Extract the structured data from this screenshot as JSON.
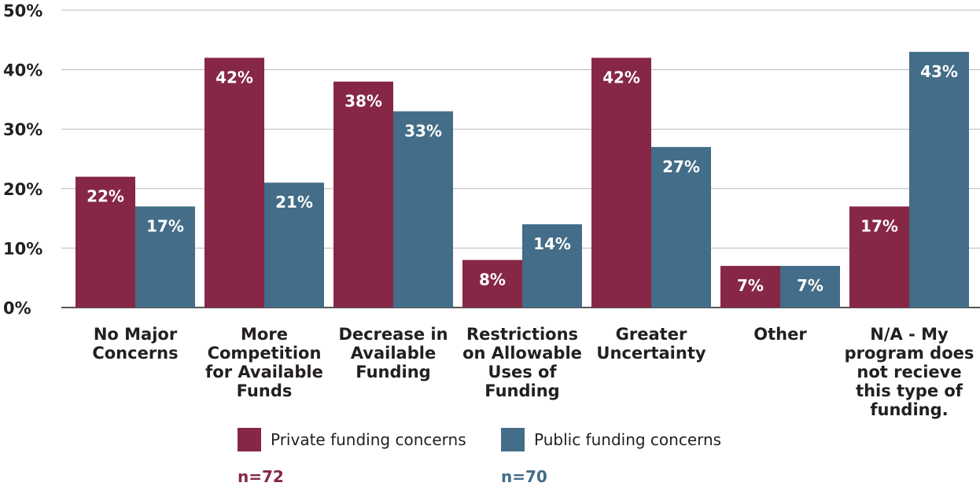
{
  "chart_data": {
    "type": "bar",
    "categories": [
      [
        "No Major",
        "Concerns"
      ],
      [
        "More",
        "Competition",
        "for Available",
        "Funds"
      ],
      [
        "Decrease in",
        "Available",
        "Funding"
      ],
      [
        "Restrictions",
        "on Allowable",
        "Uses of",
        "Funding"
      ],
      [
        "Greater",
        "Uncertainty"
      ],
      [
        "Other"
      ],
      [
        "N/A - My",
        "program does",
        "not recieve",
        "this type of",
        "funding."
      ]
    ],
    "series": [
      {
        "name": "Private funding concerns",
        "values": [
          22,
          42,
          38,
          8,
          42,
          7,
          17
        ],
        "labels": [
          "22%",
          "42%",
          "38%",
          "8%",
          "42%",
          "7%",
          "17%"
        ],
        "color": "#862745"
      },
      {
        "name": "Public funding concerns",
        "values": [
          17,
          21,
          33,
          14,
          27,
          7,
          43
        ],
        "labels": [
          "17%",
          "21%",
          "33%",
          "14%",
          "27%",
          "7%",
          "43%"
        ],
        "color": "#436d88"
      }
    ],
    "ylim": [
      0,
      50
    ],
    "yticks": [
      "0%",
      "10%",
      "20%",
      "30%",
      "40%",
      "50%"
    ],
    "grid": true,
    "legend_position": "bottom"
  },
  "legend": {
    "private_label": "Private funding concerns",
    "public_label": "Public funding concerns",
    "private_n": "n=72",
    "public_n": "n=70",
    "private_color": "#862745",
    "public_color": "#436d88"
  }
}
